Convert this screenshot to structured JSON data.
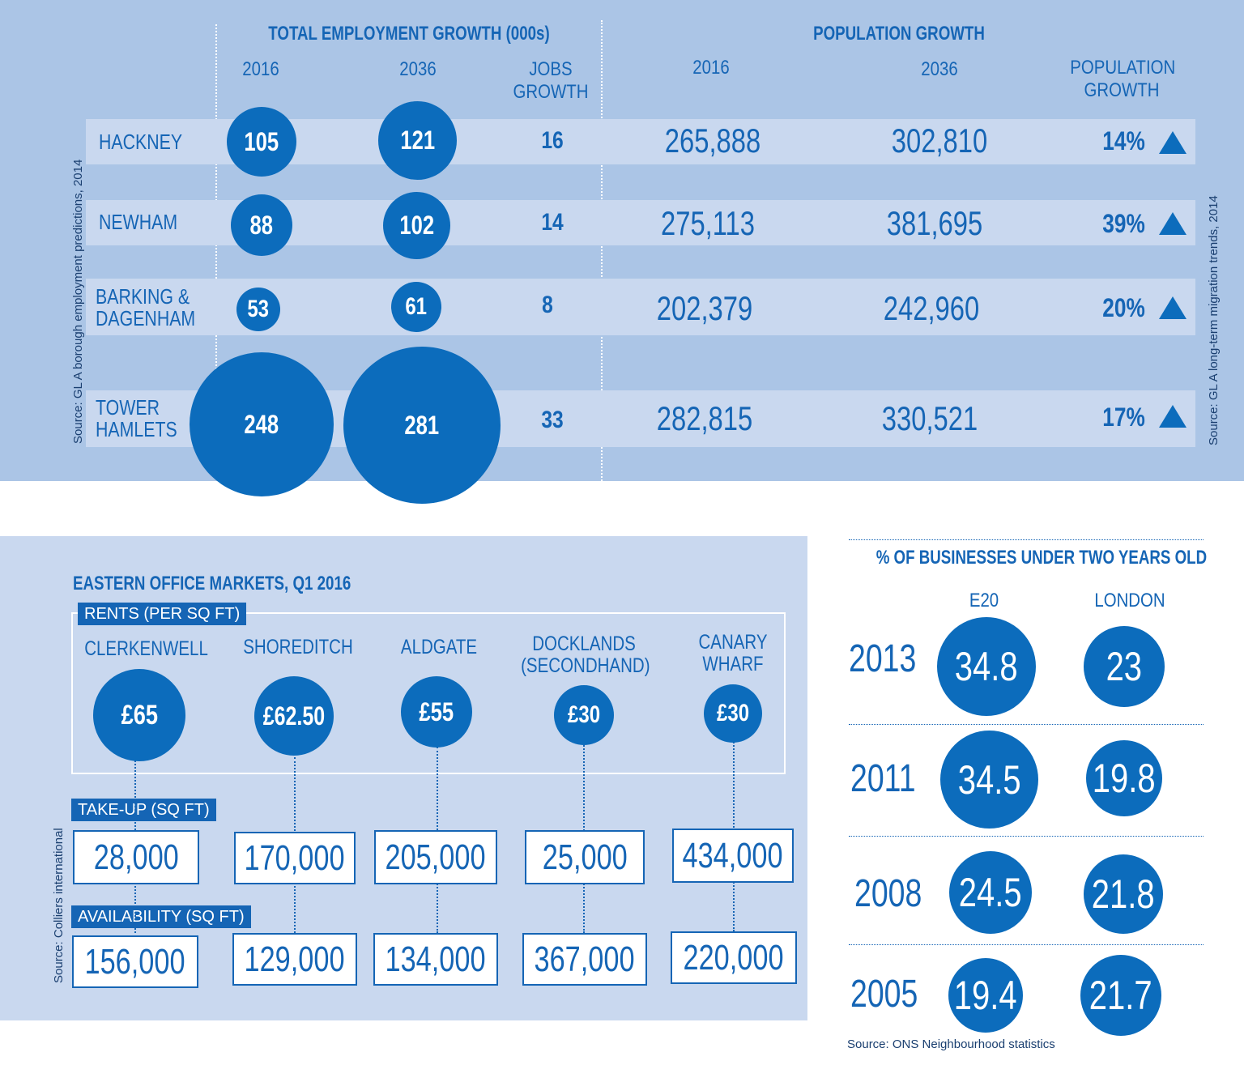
{
  "employment": {
    "title": "TOTAL EMPLOYMENT GROWTH (000s)",
    "col_2016": "2016",
    "col_2036": "2036",
    "col_jobs": [
      "JOBS",
      "GROWTH"
    ],
    "source": "Source: GL A borough employment predictions, 2014"
  },
  "population": {
    "title": "POPULATION GROWTH",
    "col_2016": "2016",
    "col_2036": "2036",
    "col_growth": [
      "POPULATION",
      "GROWTH"
    ],
    "source": "Source: GL A long-term migration trends, 2014"
  },
  "boroughs": [
    {
      "name": [
        "HACKNEY"
      ],
      "emp_2016": "105",
      "emp_2036": "121",
      "jobs_growth": "16",
      "pop_2016": "265,888",
      "pop_2036": "302,810",
      "pop_growth": "14%"
    },
    {
      "name": [
        "NEWHAM"
      ],
      "emp_2016": "88",
      "emp_2036": "102",
      "jobs_growth": "14",
      "pop_2016": "275,113",
      "pop_2036": "381,695",
      "pop_growth": "39%"
    },
    {
      "name": [
        "BARKING &",
        "DAGENHAM"
      ],
      "emp_2016": "53",
      "emp_2036": "61",
      "jobs_growth": "8",
      "pop_2016": "202,379",
      "pop_2036": "242,960",
      "pop_growth": "20%"
    },
    {
      "name": [
        "TOWER",
        "HAMLETS"
      ],
      "emp_2016": "248",
      "emp_2036": "281",
      "jobs_growth": "33",
      "pop_2016": "282,815",
      "pop_2036": "330,521",
      "pop_growth": "17%"
    }
  ],
  "office": {
    "title": "EASTERN OFFICE MARKETS, Q1 2016",
    "rents_tag": "RENTS (PER SQ FT)",
    "takeup_tag": "TAKE-UP (SQ FT)",
    "availability_tag": "AVAILABILITY (SQ FT)",
    "source": "Source: Colliers international",
    "markets": [
      {
        "name": [
          "CLERKENWELL"
        ],
        "rent": "£65",
        "rent_value": 65,
        "takeup": "28,000",
        "availability": "156,000"
      },
      {
        "name": [
          "SHOREDITCH"
        ],
        "rent": "£62.50",
        "rent_value": 62.5,
        "takeup": "170,000",
        "availability": "129,000"
      },
      {
        "name": [
          "ALDGATE"
        ],
        "rent": "£55",
        "rent_value": 55,
        "takeup": "205,000",
        "availability": "134,000"
      },
      {
        "name": [
          "DOCKLANDS",
          "(SECONDHAND)"
        ],
        "rent": "£30",
        "rent_value": 30,
        "takeup": "25,000",
        "availability": "367,000"
      },
      {
        "name": [
          "CANARY",
          "WHARF"
        ],
        "rent": "£30",
        "rent_value": 30,
        "takeup": "434,000",
        "availability": "220,000"
      }
    ]
  },
  "businesses": {
    "title": "% OF BUSINESSES UNDER TWO YEARS OLD",
    "col_e20": "E20",
    "col_london": "LONDON",
    "source": "Source: ONS Neighbourhood statistics",
    "rows": [
      {
        "year": "2013",
        "e20": "34.8",
        "london": "23"
      },
      {
        "year": "2011",
        "e20": "34.5",
        "london": "19.8"
      },
      {
        "year": "2008",
        "e20": "24.5",
        "london": "21.8"
      },
      {
        "year": "2005",
        "e20": "19.4",
        "london": "21.7"
      }
    ]
  },
  "colors": {
    "bubble": "#0c6cbc",
    "text": "#1565b5",
    "panel_top": "#abc5e6",
    "panel_band": "#c9d8ef"
  },
  "chart_data": [
    {
      "type": "table",
      "title": "TOTAL EMPLOYMENT GROWTH (000s)",
      "categories": [
        "HACKNEY",
        "NEWHAM",
        "BARKING & DAGENHAM",
        "TOWER HAMLETS"
      ],
      "series": [
        {
          "name": "2016",
          "values": [
            105,
            88,
            53,
            248
          ]
        },
        {
          "name": "2036",
          "values": [
            121,
            102,
            61,
            281
          ]
        },
        {
          "name": "JOBS GROWTH",
          "values": [
            16,
            14,
            8,
            33
          ]
        }
      ]
    },
    {
      "type": "table",
      "title": "POPULATION GROWTH",
      "categories": [
        "HACKNEY",
        "NEWHAM",
        "BARKING & DAGENHAM",
        "TOWER HAMLETS"
      ],
      "series": [
        {
          "name": "2016",
          "values": [
            265888,
            275113,
            202379,
            282815
          ]
        },
        {
          "name": "2036",
          "values": [
            302810,
            381695,
            242960,
            330521
          ]
        },
        {
          "name": "POPULATION GROWTH",
          "values": [
            14,
            39,
            20,
            17
          ]
        }
      ]
    },
    {
      "type": "table",
      "title": "EASTERN OFFICE MARKETS, Q1 2016",
      "categories": [
        "CLERKENWELL",
        "SHOREDITCH",
        "ALDGATE",
        "DOCKLANDS (SECONDHAND)",
        "CANARY WHARF"
      ],
      "series": [
        {
          "name": "RENTS (PER SQ FT)",
          "values": [
            65,
            62.5,
            55,
            30,
            30
          ]
        },
        {
          "name": "TAKE-UP (SQ FT)",
          "values": [
            28000,
            170000,
            205000,
            25000,
            434000
          ]
        },
        {
          "name": "AVAILABILITY (SQ FT)",
          "values": [
            156000,
            129000,
            134000,
            367000,
            220000
          ]
        }
      ]
    },
    {
      "type": "table",
      "title": "% OF BUSINESSES UNDER TWO YEARS OLD",
      "categories": [
        "2013",
        "2011",
        "2008",
        "2005"
      ],
      "series": [
        {
          "name": "E20",
          "values": [
            34.8,
            34.5,
            24.5,
            19.4
          ]
        },
        {
          "name": "LONDON",
          "values": [
            23,
            19.8,
            21.8,
            21.7
          ]
        }
      ]
    }
  ]
}
